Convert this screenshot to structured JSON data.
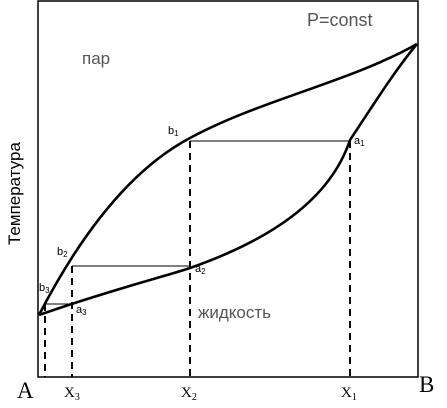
{
  "title": "P=const",
  "axis": {
    "ylabel": "Температура",
    "left_label": "A",
    "right_label": "B"
  },
  "regions": {
    "vapor": "пар",
    "liquid": "жидкость"
  },
  "points": {
    "b1": {
      "letter": "b",
      "sub": "1"
    },
    "a1": {
      "letter": "a",
      "sub": "1"
    },
    "b2": {
      "letter": "b",
      "sub": "2"
    },
    "a2": {
      "letter": "a",
      "sub": "2"
    },
    "b3": {
      "letter": "b",
      "sub": "3"
    },
    "a3": {
      "letter": "a",
      "sub": "3"
    }
  },
  "ticks": {
    "x3": {
      "letter": "X",
      "sub": "3"
    },
    "x2": {
      "letter": "X",
      "sub": "2"
    },
    "x1": {
      "letter": "X",
      "sub": "1"
    }
  }
}
